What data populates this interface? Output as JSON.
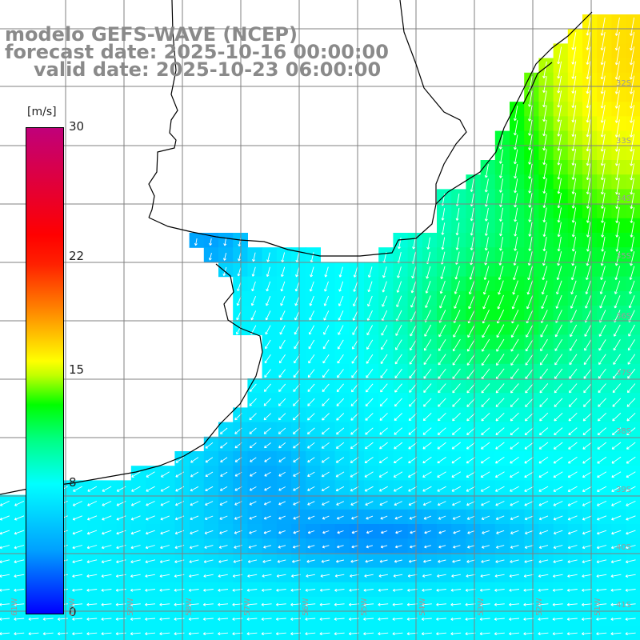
{
  "title": {
    "model": "modelo GEFS-WAVE (NCEP)",
    "forecast": "forecast date: 2025-10-16 00:00:00",
    "valid": "valid date: 2025-10-23 06:00:00"
  },
  "colorbar": {
    "unit": "[m/s]",
    "min": 0,
    "max": 30,
    "ticks": [
      "30",
      "22",
      "15",
      "8",
      "0"
    ],
    "tick_values": [
      30,
      22,
      15,
      8,
      0
    ]
  },
  "axes": {
    "lat_labels": [
      "32S",
      "33S",
      "34S",
      "35S",
      "36S",
      "37S",
      "38S",
      "39S",
      "40S",
      "41S"
    ],
    "lon_labels": [
      "61W",
      "60W",
      "59W",
      "58W",
      "57W",
      "56W",
      "55W",
      "54W",
      "53W",
      "52W",
      "51W"
    ]
  },
  "colors": {
    "land": "#ffffff",
    "coast": "#000000",
    "grid": "#808080",
    "arrows": "#ffffff",
    "title": "#8a8a8a"
  }
}
